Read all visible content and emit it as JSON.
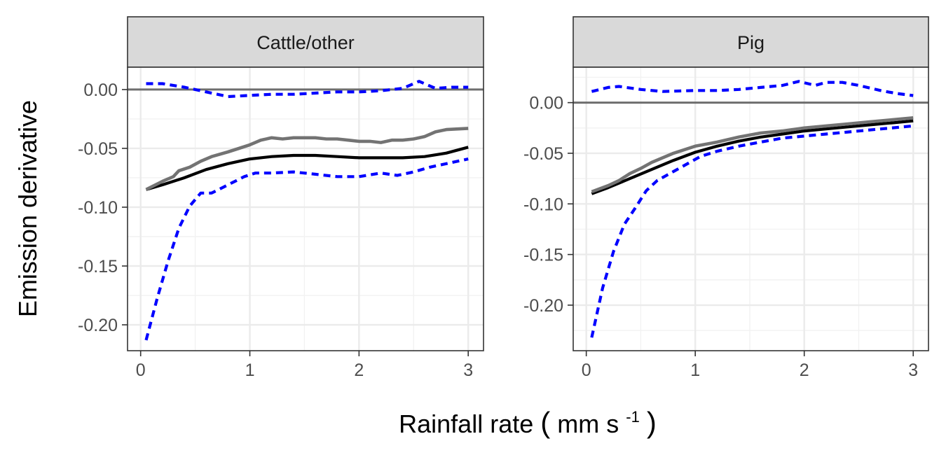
{
  "chart_data": {
    "type": "line",
    "xlabel": "Rainfall rate",
    "xlabel_unit_prefix": "mm s",
    "xlabel_unit_exponent": "-1",
    "ylabel": "Emission derivative",
    "grid": true,
    "facets": [
      {
        "name": "Cattle/other",
        "xlim": [
          -0.12,
          3.14
        ],
        "ylim": [
          -0.222,
          0.019
        ],
        "x_ticks": [
          0,
          1,
          2,
          3
        ],
        "x_tick_labels": [
          "0",
          "1",
          "2",
          "3"
        ],
        "y_ticks": [
          0,
          -0.05,
          -0.1,
          -0.15,
          -0.2
        ],
        "y_tick_labels": [
          "0.00",
          "-0.05",
          "-0.10",
          "-0.15",
          "-0.20"
        ],
        "reference_line_y": 0,
        "series": [
          {
            "style": "solid-black",
            "x": [
              0.05,
              0.2,
              0.4,
              0.6,
              0.8,
              1.0,
              1.2,
              1.4,
              1.6,
              1.8,
              2.0,
              2.2,
              2.4,
              2.6,
              2.8,
              3.0
            ],
            "y": [
              -0.085,
              -0.081,
              -0.075,
              -0.068,
              -0.063,
              -0.059,
              -0.057,
              -0.056,
              -0.056,
              -0.057,
              -0.058,
              -0.058,
              -0.058,
              -0.057,
              -0.054,
              -0.049
            ]
          },
          {
            "style": "solid-grey",
            "x": [
              0.05,
              0.2,
              0.3,
              0.35,
              0.45,
              0.55,
              0.65,
              0.8,
              0.9,
              1.0,
              1.1,
              1.2,
              1.3,
              1.4,
              1.5,
              1.6,
              1.7,
              1.8,
              1.9,
              2.0,
              2.1,
              2.2,
              2.3,
              2.4,
              2.5,
              2.6,
              2.7,
              2.8,
              3.0
            ],
            "y": [
              -0.085,
              -0.078,
              -0.074,
              -0.069,
              -0.066,
              -0.061,
              -0.057,
              -0.053,
              -0.05,
              -0.047,
              -0.043,
              -0.041,
              -0.042,
              -0.041,
              -0.041,
              -0.041,
              -0.042,
              -0.042,
              -0.043,
              -0.044,
              -0.044,
              -0.045,
              -0.043,
              -0.043,
              -0.042,
              -0.04,
              -0.036,
              -0.034,
              -0.033
            ]
          },
          {
            "style": "dashed-blue-upper",
            "x": [
              0.05,
              0.2,
              0.4,
              0.6,
              0.8,
              1.0,
              1.2,
              1.4,
              1.6,
              1.8,
              2.0,
              2.2,
              2.4,
              2.55,
              2.7,
              2.85,
              3.0
            ],
            "y": [
              0.005,
              0.005,
              0.002,
              -0.002,
              -0.006,
              -0.005,
              -0.004,
              -0.004,
              -0.003,
              -0.002,
              -0.002,
              -0.001,
              0.001,
              0.007,
              0.001,
              0.002,
              0.002
            ]
          },
          {
            "style": "dashed-blue-lower",
            "x": [
              0.05,
              0.15,
              0.25,
              0.35,
              0.45,
              0.55,
              0.65,
              0.8,
              0.95,
              1.05,
              1.2,
              1.4,
              1.6,
              1.8,
              2.0,
              2.2,
              2.35,
              2.5,
              2.65,
              2.8,
              3.0
            ],
            "y": [
              -0.213,
              -0.178,
              -0.146,
              -0.118,
              -0.099,
              -0.088,
              -0.088,
              -0.081,
              -0.074,
              -0.071,
              -0.071,
              -0.07,
              -0.072,
              -0.074,
              -0.074,
              -0.071,
              -0.073,
              -0.07,
              -0.066,
              -0.063,
              -0.059
            ]
          }
        ]
      },
      {
        "name": "Pig",
        "xlim": [
          -0.12,
          3.14
        ],
        "ylim": [
          -0.245,
          0.035
        ],
        "x_ticks": [
          0,
          1,
          2,
          3
        ],
        "x_tick_labels": [
          "0",
          "1",
          "2",
          "3"
        ],
        "y_ticks": [
          0,
          -0.05,
          -0.1,
          -0.15,
          -0.2
        ],
        "y_tick_labels": [
          "0.00",
          "-0.05",
          "-0.10",
          "-0.15",
          "-0.20"
        ],
        "reference_line_y": 0,
        "series": [
          {
            "style": "solid-black",
            "x": [
              0.05,
              0.2,
              0.4,
              0.6,
              0.8,
              1.0,
              1.2,
              1.4,
              1.6,
              1.8,
              2.0,
              2.2,
              2.4,
              2.6,
              2.8,
              3.0
            ],
            "y": [
              -0.09,
              -0.084,
              -0.075,
              -0.066,
              -0.057,
              -0.049,
              -0.043,
              -0.038,
              -0.034,
              -0.031,
              -0.028,
              -0.026,
              -0.024,
              -0.022,
              -0.02,
              -0.018
            ]
          },
          {
            "style": "solid-grey",
            "x": [
              0.05,
              0.2,
              0.3,
              0.4,
              0.5,
              0.6,
              0.8,
              1.0,
              1.2,
              1.4,
              1.6,
              1.8,
              2.0,
              2.2,
              2.4,
              2.6,
              2.8,
              3.0
            ],
            "y": [
              -0.088,
              -0.082,
              -0.077,
              -0.07,
              -0.065,
              -0.059,
              -0.05,
              -0.043,
              -0.039,
              -0.034,
              -0.03,
              -0.028,
              -0.025,
              -0.023,
              -0.021,
              -0.019,
              -0.017,
              -0.015
            ]
          },
          {
            "style": "dashed-blue-upper",
            "x": [
              0.05,
              0.2,
              0.3,
              0.5,
              0.7,
              1.0,
              1.2,
              1.4,
              1.6,
              1.8,
              1.95,
              2.1,
              2.2,
              2.35,
              2.5,
              2.7,
              2.85,
              3.0
            ],
            "y": [
              0.011,
              0.015,
              0.016,
              0.013,
              0.011,
              0.012,
              0.012,
              0.013,
              0.015,
              0.017,
              0.021,
              0.017,
              0.02,
              0.02,
              0.017,
              0.012,
              0.009,
              0.007
            ]
          },
          {
            "style": "dashed-blue-lower",
            "x": [
              0.05,
              0.15,
              0.25,
              0.35,
              0.45,
              0.55,
              0.65,
              0.8,
              0.95,
              1.05,
              1.2,
              1.4,
              1.6,
              1.8,
              2.0,
              2.2,
              2.4,
              2.6,
              2.8,
              3.0
            ],
            "y": [
              -0.232,
              -0.183,
              -0.147,
              -0.12,
              -0.104,
              -0.087,
              -0.077,
              -0.068,
              -0.059,
              -0.053,
              -0.048,
              -0.043,
              -0.039,
              -0.035,
              -0.033,
              -0.031,
              -0.029,
              -0.027,
              -0.025,
              -0.023
            ]
          }
        ]
      }
    ]
  }
}
